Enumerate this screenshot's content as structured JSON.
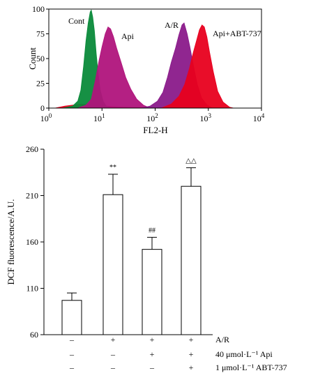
{
  "chart_data": [
    {
      "type": "area",
      "xlabel": "FL2-H",
      "ylabel": "Count",
      "xscale": "log",
      "xlim": [
        1,
        10000
      ],
      "ylim": [
        0,
        100
      ],
      "x_ticks": [
        {
          "value": 1,
          "base": "10",
          "exp": "0"
        },
        {
          "value": 10,
          "base": "10",
          "exp": "1"
        },
        {
          "value": 100,
          "base": "10",
          "exp": "2"
        },
        {
          "value": 1000,
          "base": "10",
          "exp": "3"
        },
        {
          "value": 10000,
          "base": "10",
          "exp": "4"
        }
      ],
      "y_ticks": [
        "0",
        "25",
        "50",
        "75",
        "100"
      ],
      "y_tick_values": [
        0,
        25,
        50,
        75,
        100
      ],
      "grid": false,
      "series": [
        {
          "name": "Cont",
          "color": "#0a8a3a",
          "points": [
            [
              1.8,
              0
            ],
            [
              2.8,
              2
            ],
            [
              3.5,
              7
            ],
            [
              4.0,
              18
            ],
            [
              4.5,
              42
            ],
            [
              5.0,
              68
            ],
            [
              5.5,
              86
            ],
            [
              6.0,
              97
            ],
            [
              6.3,
              99
            ],
            [
              6.7,
              92
            ],
            [
              7.2,
              78
            ],
            [
              7.8,
              55
            ],
            [
              8.5,
              34
            ],
            [
              9.3,
              18
            ],
            [
              10.5,
              7
            ],
            [
              12,
              2
            ],
            [
              14,
              0
            ]
          ]
        },
        {
          "name": "Api",
          "color": "#b0147c",
          "points": [
            [
              3.5,
              0
            ],
            [
              5,
              3
            ],
            [
              6.3,
              9
            ],
            [
              7.5,
              28
            ],
            [
              8.8,
              48
            ],
            [
              10,
              62
            ],
            [
              11.5,
              75
            ],
            [
              13,
              82
            ],
            [
              14.5,
              80
            ],
            [
              16.5,
              72
            ],
            [
              19,
              60
            ],
            [
              23,
              46
            ],
            [
              28,
              31
            ],
            [
              35,
              19
            ],
            [
              45,
              9
            ],
            [
              60,
              3
            ],
            [
              80,
              0
            ]
          ]
        },
        {
          "name": "A/R",
          "color": "#8a1a8a",
          "points": [
            [
              55,
              0
            ],
            [
              80,
              2
            ],
            [
              110,
              7
            ],
            [
              140,
              16
            ],
            [
              170,
              31
            ],
            [
              200,
              46
            ],
            [
              240,
              60
            ],
            [
              280,
              74
            ],
            [
              320,
              84
            ],
            [
              350,
              86
            ],
            [
              400,
              75
            ],
            [
              450,
              62
            ],
            [
              520,
              44
            ],
            [
              620,
              24
            ],
            [
              750,
              10
            ],
            [
              950,
              3
            ],
            [
              1200,
              0
            ]
          ]
        },
        {
          "name": "Api+ABT-737",
          "color": "#e8001e",
          "points": [
            [
              130,
              0
            ],
            [
              200,
              4
            ],
            [
              280,
              12
            ],
            [
              360,
              24
            ],
            [
              440,
              40
            ],
            [
              520,
              56
            ],
            [
              600,
              68
            ],
            [
              680,
              79
            ],
            [
              760,
              84
            ],
            [
              840,
              82
            ],
            [
              940,
              72
            ],
            [
              1050,
              57
            ],
            [
              1250,
              36
            ],
            [
              1500,
              17
            ],
            [
              1900,
              6
            ],
            [
              2500,
              1
            ],
            [
              3000,
              0
            ]
          ]
        },
        {
          "name": "",
          "color": "#e8001e",
          "points": [
            [
              1.3,
              0
            ],
            [
              2,
              2
            ],
            [
              4,
              4
            ],
            [
              7,
              3
            ],
            [
              12,
              2
            ],
            [
              20,
              1.2
            ],
            [
              40,
              0.7
            ],
            [
              80,
              0.4
            ],
            [
              150,
              0.2
            ],
            [
              200,
              0
            ]
          ]
        }
      ]
    },
    {
      "type": "bar",
      "ylabel": "DCF fluorescence/A.U.",
      "ylim": [
        60,
        260
      ],
      "y_ticks": [
        "60",
        "110",
        "160",
        "210",
        "260"
      ],
      "y_tick_values": [
        60,
        110,
        160,
        210,
        260
      ],
      "grid": false,
      "bar_color": "#ffffff",
      "values": [
        97,
        211,
        152,
        220
      ],
      "errors": [
        8,
        22,
        13,
        20
      ],
      "markers": [
        "",
        "**",
        "##",
        "△△"
      ],
      "conditions": [
        {
          "label": "A/R",
          "signs": [
            "–",
            "+",
            "+",
            "+"
          ]
        },
        {
          "label": "40 μmol·L⁻¹ Api",
          "signs": [
            "–",
            "–",
            "+",
            "+"
          ]
        },
        {
          "label": "1 μmol·L⁻¹ ABT-737",
          "signs": [
            "–",
            "–",
            "–",
            "+"
          ]
        }
      ]
    }
  ]
}
